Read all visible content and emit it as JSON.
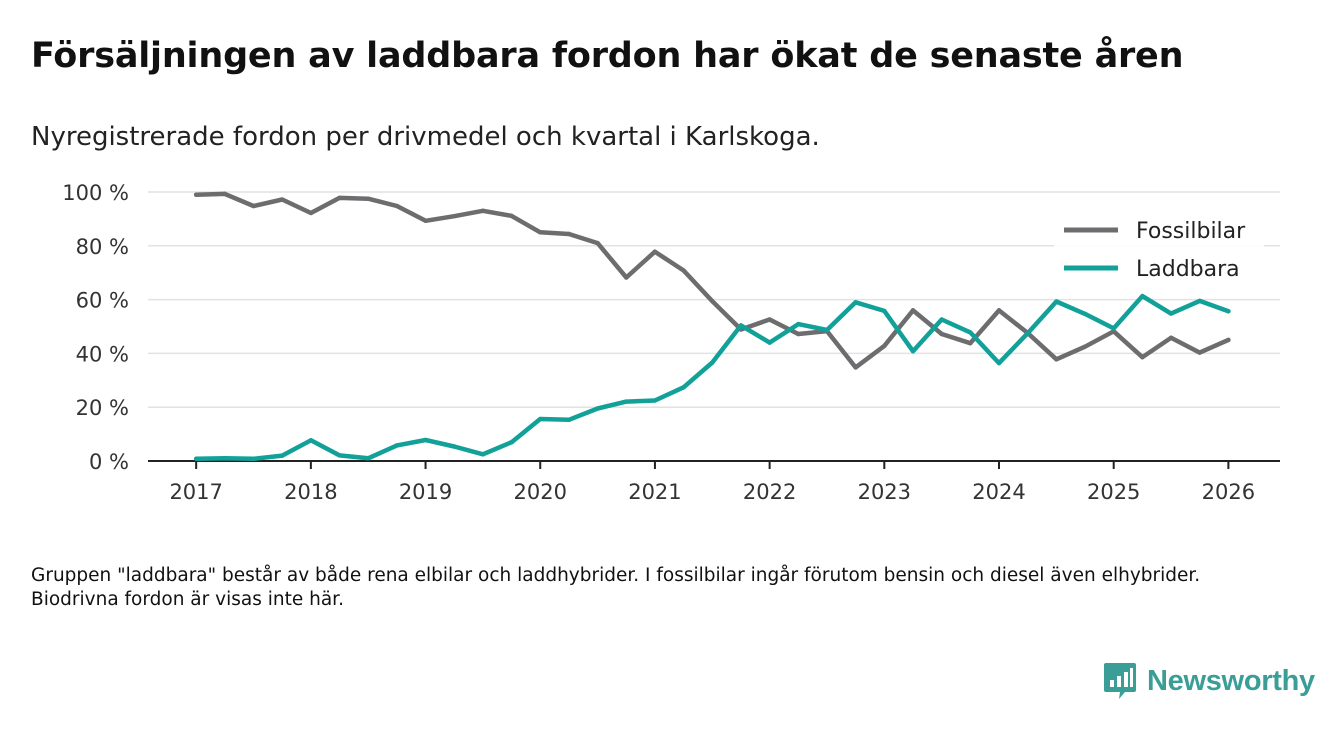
{
  "title": "Försäljningen av laddbara fordon har ökat de senaste åren",
  "subtitle": "Nyregistrerade fordon per drivmedel och kvartal i Karlskoga.",
  "note": "Gruppen \"laddbara\" består av både rena elbilar och laddhybrider. I fossilbilar ingår förutom bensin och diesel även elhybrider. Biodrivna fordon är visas inte här.",
  "brand": {
    "name": "Newsworthy",
    "color": "#3a9e97"
  },
  "chart_data": {
    "type": "line",
    "x": [
      2017.0,
      2017.25,
      2017.5,
      2017.75,
      2018.0,
      2018.25,
      2018.5,
      2018.75,
      2019.0,
      2019.25,
      2019.5,
      2019.75,
      2020.0,
      2020.25,
      2020.5,
      2020.75,
      2021.0,
      2021.25,
      2021.5,
      2021.75,
      2022.0,
      2022.25,
      2022.5,
      2022.75,
      2023.0,
      2023.25,
      2023.5,
      2023.75,
      2024.0,
      2024.25,
      2024.5,
      2024.75,
      2025.0,
      2025.25,
      2025.5,
      2025.75,
      2026.0
    ],
    "series": [
      {
        "name": "Fossilbilar",
        "color": "#6d6d70",
        "values": [
          99,
          99.3,
          94.8,
          97.2,
          92.2,
          97.8,
          97.5,
          94.8,
          89.3,
          91,
          93,
          91.1,
          85,
          84.4,
          81,
          68.2,
          77.8,
          70.8,
          59.4,
          48.9,
          52.6,
          47.2,
          48.3,
          34.8,
          42.8,
          56,
          47.2,
          43.8,
          56,
          47.6,
          37.8,
          42.5,
          48.2,
          38.6,
          45.8,
          40.3,
          45
        ]
      },
      {
        "name": "Laddbara",
        "color": "#11a199",
        "values": [
          0.8,
          1,
          0.8,
          2,
          7.7,
          2.1,
          1,
          5.8,
          7.8,
          5.4,
          2.5,
          7,
          15.6,
          15.3,
          19.5,
          22.1,
          22.5,
          27.4,
          36.6,
          50.4,
          44,
          50.9,
          48.7,
          59,
          55.8,
          40.8,
          52.6,
          47.8,
          36.4,
          47.5,
          59.3,
          54.7,
          49.3,
          61.3,
          54.8,
          59.5,
          55.7
        ]
      }
    ],
    "title": "Försäljningen av laddbara fordon har ökat de senaste åren",
    "xlabel": "",
    "ylabel": "",
    "ylim": [
      0,
      100
    ],
    "xlim": [
      2016.58,
      2026.45
    ],
    "yticks": [
      0,
      20,
      40,
      60,
      80,
      100
    ],
    "ytick_labels": [
      "0 %",
      "20 %",
      "40 %",
      "60 %",
      "80 %",
      "100 %"
    ],
    "xticks": [
      2017,
      2018,
      2019,
      2020,
      2021,
      2022,
      2023,
      2024,
      2025,
      2026
    ],
    "xtick_labels": [
      "2017",
      "2018",
      "2019",
      "2020",
      "2021",
      "2022",
      "2023",
      "2024",
      "2025",
      "2026"
    ],
    "legend_position": "top-right",
    "grid": true
  }
}
